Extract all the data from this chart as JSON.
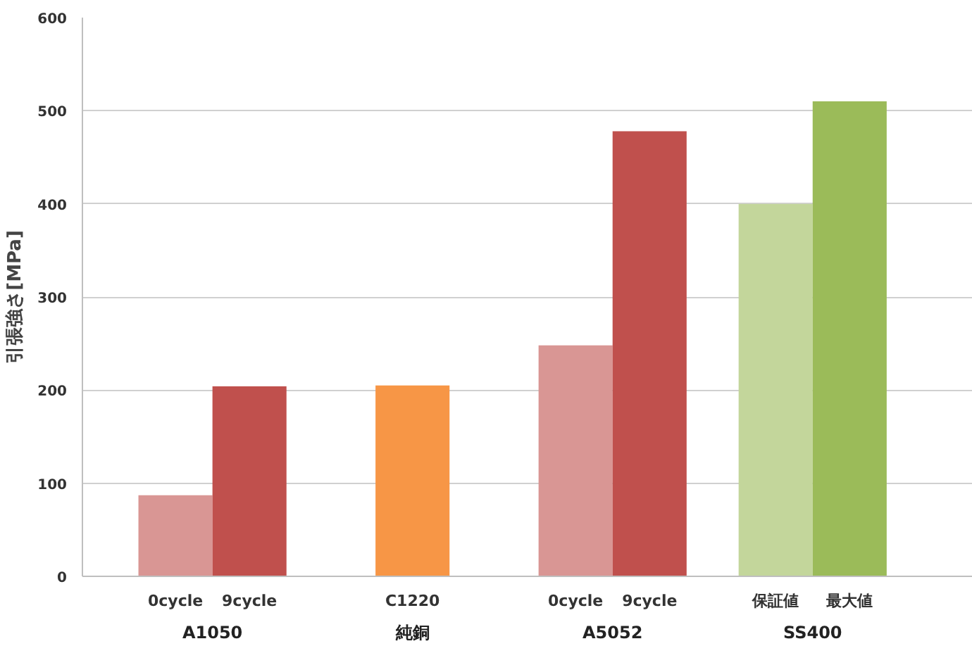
{
  "chart_data": {
    "type": "bar",
    "ylabel": "引張強さ[MPa]",
    "categories": [
      "A1050",
      "純銅",
      "A5052",
      "SS400"
    ],
    "series": [
      {
        "name": "0cycle",
        "color": "#d99694",
        "values": [
          87,
          null,
          248,
          null
        ]
      },
      {
        "name": "9cycle",
        "color": "#c0504d",
        "values": [
          204,
          null,
          478,
          null
        ]
      },
      {
        "name": "C1220",
        "color": "#f79646",
        "values": [
          null,
          205,
          null,
          null
        ]
      },
      {
        "name": "保証値",
        "color": "#c3d69b",
        "values": [
          null,
          null,
          null,
          400
        ]
      },
      {
        "name": "最大値",
        "color": "#9bbb59",
        "values": [
          null,
          null,
          null,
          510
        ]
      }
    ],
    "ylim": [
      0,
      600
    ],
    "yticks": [
      0,
      100,
      200,
      300,
      400,
      500,
      600
    ],
    "grid": "y"
  }
}
